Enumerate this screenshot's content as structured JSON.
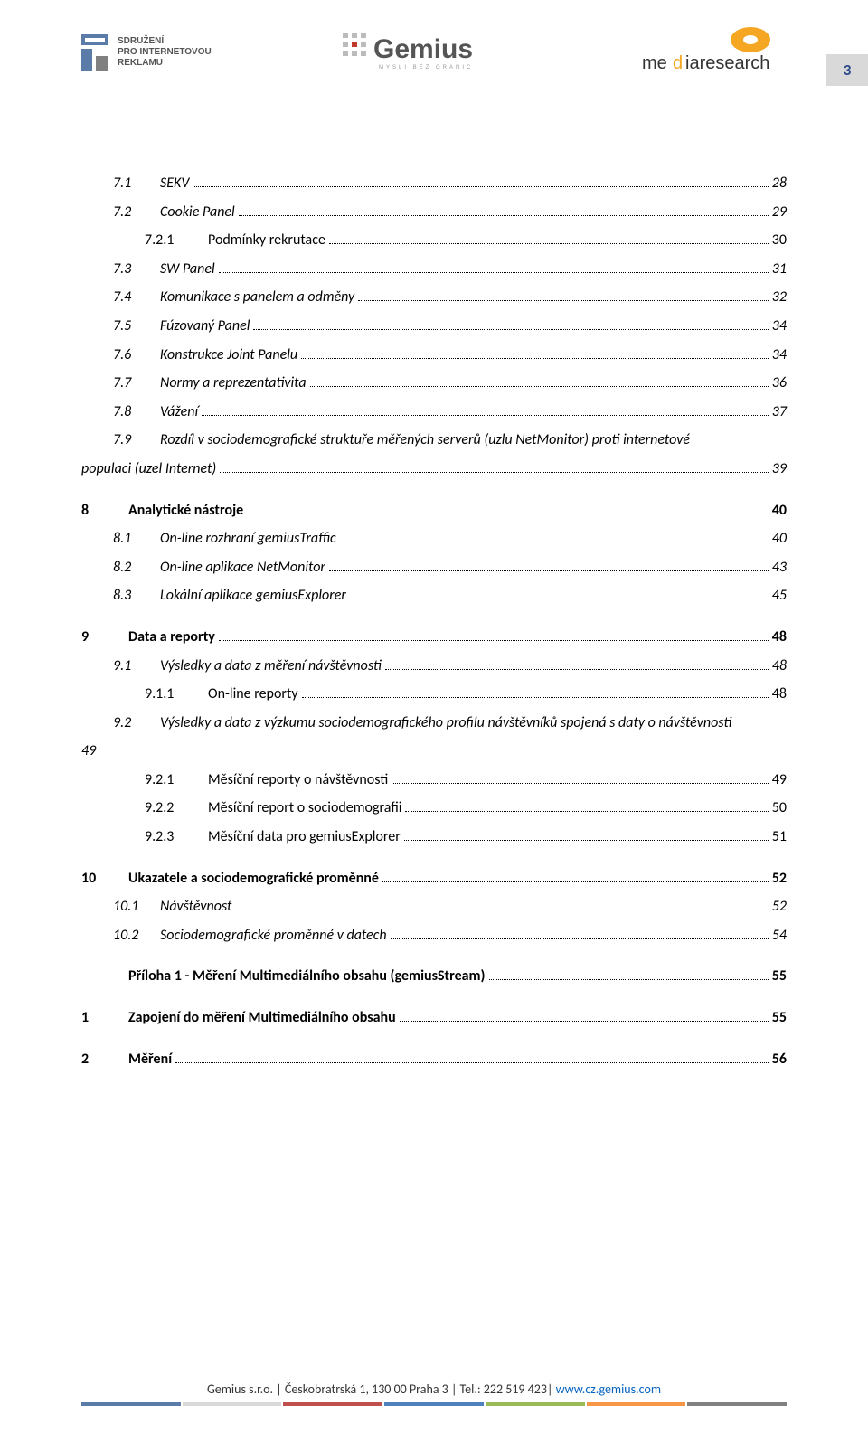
{
  "page_number": "3",
  "logos": {
    "left_text1": "SDRUŽENÍ",
    "left_text2": "PRO INTERNETOVOU",
    "left_text3": "REKLAMU",
    "center_text": "Gemius",
    "center_sub": "MYSLÍ BEZ GRANIC",
    "right_text": "mediaresearch"
  },
  "toc": [
    {
      "level": 1,
      "num": "7.1",
      "title": "SEKV",
      "page": "28",
      "italic": true
    },
    {
      "level": 1,
      "num": "7.2",
      "title": "Cookie Panel",
      "page": "29",
      "italic": true
    },
    {
      "level": 2,
      "num": "7.2.1",
      "title": "Podmínky rekrutace",
      "page": "30",
      "italic": false
    },
    {
      "level": 1,
      "num": "7.3",
      "title": "SW Panel",
      "page": "31",
      "italic": true
    },
    {
      "level": 1,
      "num": "7.4",
      "title": "Komunikace s panelem a odměny",
      "page": "32",
      "italic": true
    },
    {
      "level": 1,
      "num": "7.5",
      "title": "Fúzovaný Panel",
      "page": "34",
      "italic": true
    },
    {
      "level": 1,
      "num": "7.6",
      "title": "Konstrukce Joint Panelu",
      "page": "34",
      "italic": true
    },
    {
      "level": 1,
      "num": "7.7",
      "title": "Normy a reprezentativita",
      "page": "36",
      "italic": true
    },
    {
      "level": 1,
      "num": "7.8",
      "title": "Vážení",
      "page": "37",
      "italic": true
    },
    {
      "level": 1,
      "num": "7.9",
      "title": "Rozdíl v sociodemografické struktuře měřených serverů (uzlu NetMonitor) proti internetové",
      "page": "",
      "italic": true,
      "noleader": true
    },
    {
      "level": -1,
      "num": "",
      "title": "populaci (uzel Internet)",
      "page": "39",
      "italic": true,
      "cont": true
    },
    {
      "level": 0,
      "num": "8",
      "title": "Analytické nástroje",
      "page": "40",
      "bold": true,
      "spaced": true
    },
    {
      "level": 1,
      "num": "8.1",
      "title": "On-line rozhraní gemiusTraffic",
      "page": "40",
      "italic": true
    },
    {
      "level": 1,
      "num": "8.2",
      "title": "On-line aplikace NetMonitor",
      "page": "43",
      "italic": true
    },
    {
      "level": 1,
      "num": "8.3",
      "title": "Lokální aplikace gemiusExplorer",
      "page": "45",
      "italic": true
    },
    {
      "level": 0,
      "num": "9",
      "title": "Data a reporty",
      "page": "48",
      "bold": true,
      "spaced": true
    },
    {
      "level": 1,
      "num": "9.1",
      "title": "Výsledky a data z měření návštěvnosti",
      "page": "48",
      "italic": true
    },
    {
      "level": 2,
      "num": "9.1.1",
      "title": "On-line reporty",
      "page": "48",
      "italic": false
    },
    {
      "level": 1,
      "num": "9.2",
      "title": "Výsledky a data z výzkumu sociodemografického profilu návštěvníků spojená s daty o návštěvnosti",
      "page": "",
      "italic": true,
      "noleader": true
    },
    {
      "level": -1,
      "num": "",
      "title": "49",
      "page": "",
      "italic": true,
      "cont": true,
      "noleader": true
    },
    {
      "level": 2,
      "num": "9.2.1",
      "title": "Měsíční reporty o návštěvnosti",
      "page": "49",
      "italic": false
    },
    {
      "level": 2,
      "num": "9.2.2",
      "title": "Měsíční report o sociodemografii",
      "page": "50",
      "italic": false
    },
    {
      "level": 2,
      "num": "9.2.3",
      "title": "Měsíční data pro gemiusExplorer",
      "page": "51",
      "italic": false
    },
    {
      "level": 0,
      "num": "10",
      "title": "Ukazatele a sociodemografické proměnné",
      "page": "52",
      "bold": true,
      "spaced": true
    },
    {
      "level": 1,
      "num": "10.1",
      "title": "Návštěvnost",
      "page": "52",
      "italic": true
    },
    {
      "level": 1,
      "num": "10.2",
      "title": "Sociodemografické proměnné v datech",
      "page": "54",
      "italic": true
    },
    {
      "level": 0,
      "num": "",
      "title": "Příloha 1 - Měření Multimediálního obsahu (gemiusStream)",
      "page": "55",
      "bold": true,
      "spaced": true
    },
    {
      "level": 0,
      "num": "1",
      "title": "Zapojení do měření Multimediálního obsahu",
      "page": "55",
      "bold": true,
      "spaced": true
    },
    {
      "level": 0,
      "num": "2",
      "title": "Měření",
      "page": "56",
      "bold": true,
      "spaced": true
    }
  ],
  "footer": {
    "text": "Gemius s.r.o. | Českobratrská 1, 130 00 Praha 3 | Tel.: 222 519 423| ",
    "link": "www.cz.gemius.com",
    "bar_colors": [
      "#5b7ca8",
      "#d9d9d9",
      "#c0504d",
      "#4f81bd",
      "#9bbb59",
      "#f79646",
      "#808080"
    ]
  },
  "colors": {
    "pagebox_bg": "#d9d9d9",
    "pagebox_text": "#2e4a8a"
  }
}
